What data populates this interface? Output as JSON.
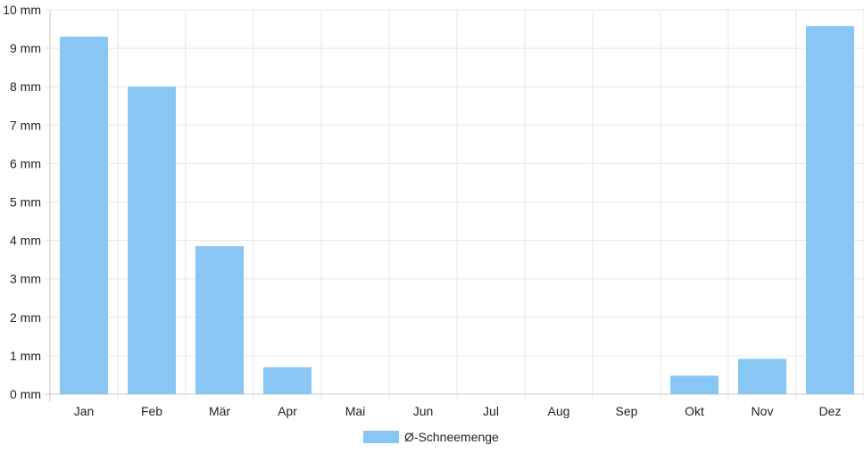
{
  "chart_data": {
    "type": "bar",
    "categories": [
      "Jan",
      "Feb",
      "Mär",
      "Apr",
      "Mai",
      "Jun",
      "Jul",
      "Aug",
      "Sep",
      "Okt",
      "Nov",
      "Dez"
    ],
    "series": [
      {
        "name": "Ø-Schneemenge",
        "values": [
          9.3,
          8.0,
          3.85,
          0.7,
          0,
          0,
          0,
          0,
          0,
          0.48,
          0.92,
          9.58
        ],
        "color": "#88c7f3"
      }
    ],
    "yticks": [
      "0 mm",
      "1 mm",
      "2 mm",
      "3 mm",
      "4 mm",
      "5 mm",
      "6 mm",
      "7 mm",
      "8 mm",
      "9 mm",
      "10 mm"
    ],
    "ylim": [
      0,
      10
    ],
    "grid": true,
    "legend": {
      "position": "bottom",
      "label": "Ø-Schneemenge"
    }
  }
}
